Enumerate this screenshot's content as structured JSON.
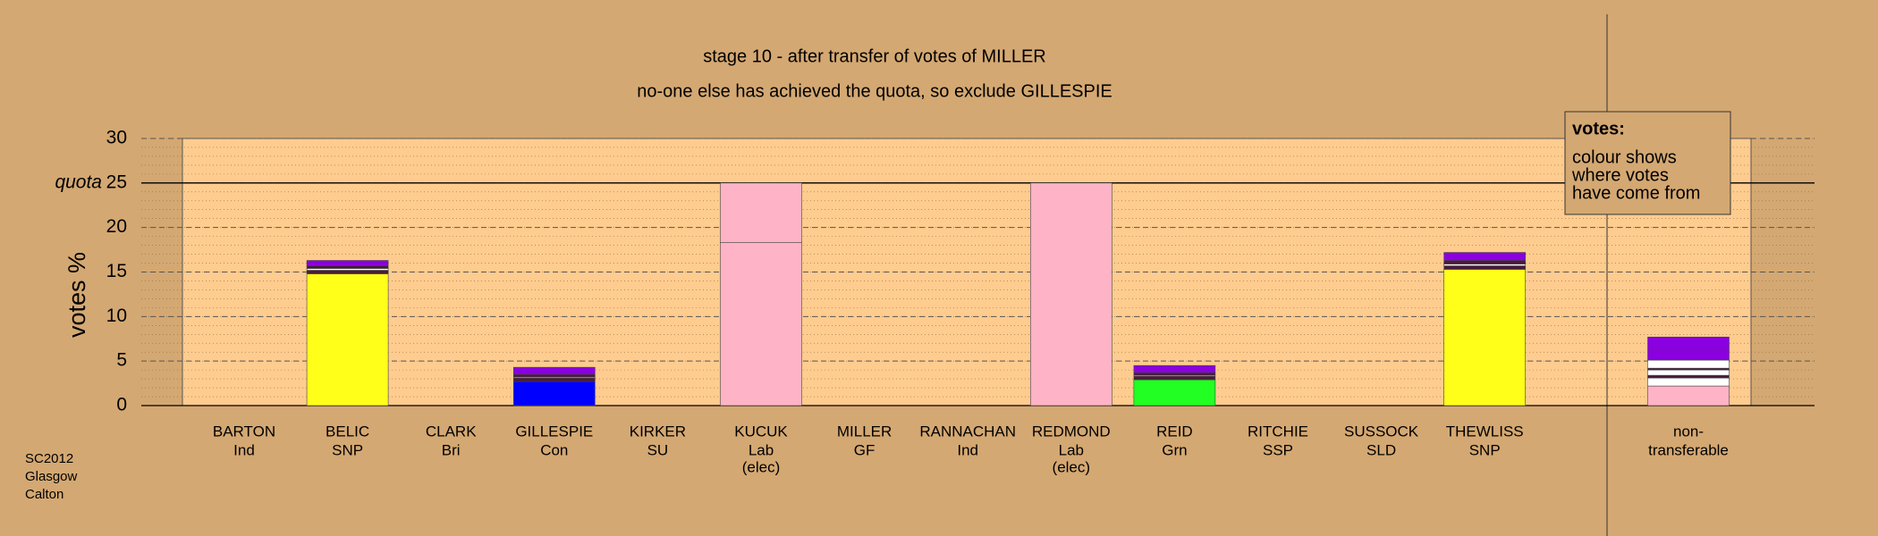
{
  "chart_data": {
    "type": "stacked-bar",
    "title": "stage 10 - after transfer of votes of MILLER",
    "subtitle": "no-one else has achieved the quota, so exclude GILLESPIE",
    "y_label": "votes %",
    "categories": [
      "BARTON",
      "BELIC",
      "CLARK",
      "GILLESPIE",
      "KIRKER",
      "KUCUK",
      "MILLER",
      "RANNACHAN",
      "REDMOND",
      "REID",
      "RITCHIE",
      "SUSSOCK",
      "THEWLISS",
      "non-"
    ],
    "parties": [
      "Ind",
      "SNP",
      "Bri",
      "Con",
      "SU",
      "Lab",
      "GF",
      "Ind",
      "Lab",
      "Grn",
      "SSP",
      "SLD",
      "SNP",
      "transferable"
    ],
    "notes": [
      null,
      null,
      null,
      null,
      null,
      "(elec)",
      null,
      null,
      "(elec)",
      null,
      null,
      null,
      null,
      null
    ],
    "series": [
      {
        "color": "#ffb3c6",
        "values": [
          null,
          null,
          null,
          null,
          null,
          18.3,
          null,
          null,
          25,
          null,
          null,
          null,
          null,
          2.2
        ]
      },
      {
        "color": "#ffb3c6",
        "values": [
          null,
          null,
          null,
          null,
          null,
          6.7,
          null,
          null,
          null,
          null,
          null,
          null,
          null,
          null
        ]
      },
      {
        "color": "#ffff1a",
        "values": [
          null,
          14.8,
          null,
          null,
          null,
          null,
          null,
          null,
          null,
          null,
          null,
          null,
          15.3,
          null
        ]
      },
      {
        "color": "#0000ff",
        "values": [
          null,
          null,
          null,
          2.7,
          null,
          null,
          null,
          null,
          null,
          null,
          null,
          null,
          null,
          null
        ]
      },
      {
        "color": "#22ff22",
        "values": [
          null,
          null,
          null,
          null,
          null,
          null,
          null,
          null,
          null,
          2.9,
          null,
          null,
          null,
          null
        ]
      },
      {
        "color": "#ffffff",
        "values": [
          null,
          null,
          null,
          null,
          null,
          null,
          null,
          null,
          null,
          null,
          null,
          null,
          null,
          0.9
        ]
      },
      {
        "color": "#4a1a3a",
        "values": [
          null,
          0.4,
          null,
          0.4,
          null,
          null,
          null,
          null,
          null,
          0.4,
          null,
          null,
          0.4,
          0.3
        ]
      },
      {
        "color": "#ffffff",
        "values": [
          null,
          0.2,
          null,
          0.1,
          null,
          null,
          null,
          null,
          null,
          0.1,
          null,
          null,
          0.2,
          0.6
        ]
      },
      {
        "color": "#4a1a3a",
        "values": [
          null,
          0.3,
          null,
          0.3,
          null,
          null,
          null,
          null,
          null,
          0.3,
          null,
          null,
          0.4,
          0.2
        ]
      },
      {
        "color": "#ffffff",
        "values": [
          null,
          null,
          null,
          null,
          null,
          null,
          null,
          null,
          null,
          null,
          null,
          null,
          null,
          0.9
        ]
      },
      {
        "color": "#8b00e0",
        "values": [
          null,
          0.6,
          null,
          0.8,
          null,
          null,
          null,
          null,
          null,
          0.8,
          null,
          null,
          0.9,
          1.2
        ]
      },
      {
        "color": "#8b00e0",
        "values": [
          null,
          null,
          null,
          null,
          null,
          null,
          null,
          null,
          null,
          null,
          null,
          null,
          null,
          1.4
        ]
      }
    ],
    "ylim": [
      0,
      30
    ],
    "yticks": [
      0,
      5,
      10,
      15,
      20,
      25,
      30
    ],
    "quota": {
      "value": 25,
      "label": "quota"
    },
    "legend_title": "votes:",
    "legend_text": [
      "colour shows",
      "where votes",
      "have come from"
    ],
    "footer": [
      "SC2012",
      "Glasgow",
      "Calton"
    ],
    "grid": true
  }
}
